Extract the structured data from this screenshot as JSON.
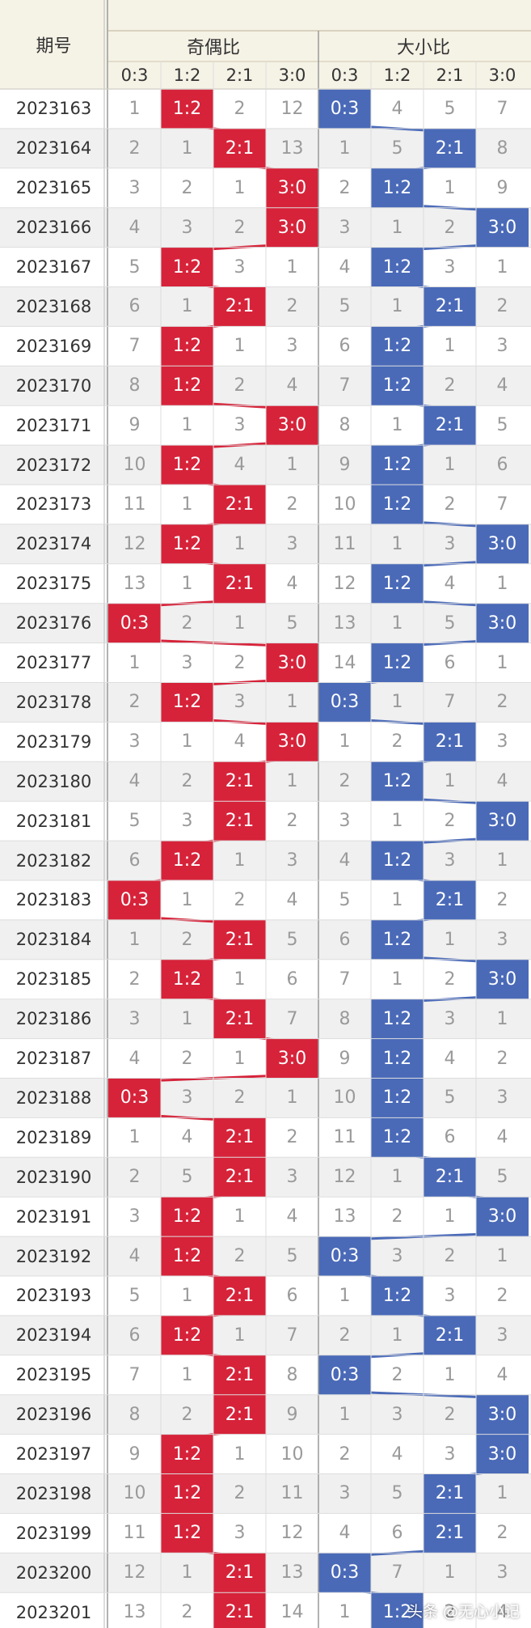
{
  "header": {
    "issue_label": "期号",
    "group_left": "奇偶比",
    "group_right": "大小比",
    "sub_labels": [
      "0:3",
      "1:2",
      "2:1",
      "3:0",
      "0:3",
      "1:2",
      "2:1",
      "3:0"
    ]
  },
  "colors": {
    "header_bg": "#f5f2e6",
    "row_alt": "#f0f0f0",
    "hit_left": "#d6233a",
    "hit_right": "#4a6ab8",
    "grid_line": "#dddddd"
  },
  "rows": [
    {
      "issue": "2023163",
      "left": [
        "1",
        "1:2",
        "2",
        "12"
      ],
      "right": [
        "0:3",
        "4",
        "5",
        "7"
      ],
      "lh": 1,
      "rh": 0
    },
    {
      "issue": "2023164",
      "left": [
        "2",
        "1",
        "2:1",
        "13"
      ],
      "right": [
        "1",
        "5",
        "2:1",
        "8"
      ],
      "lh": 2,
      "rh": 2
    },
    {
      "issue": "2023165",
      "left": [
        "3",
        "2",
        "1",
        "3:0"
      ],
      "right": [
        "2",
        "1:2",
        "1",
        "9"
      ],
      "lh": 3,
      "rh": 1
    },
    {
      "issue": "2023166",
      "left": [
        "4",
        "3",
        "2",
        "3:0"
      ],
      "right": [
        "3",
        "1",
        "2",
        "3:0"
      ],
      "lh": 3,
      "rh": 3
    },
    {
      "issue": "2023167",
      "left": [
        "5",
        "1:2",
        "3",
        "1"
      ],
      "right": [
        "4",
        "1:2",
        "3",
        "1"
      ],
      "lh": 1,
      "rh": 1
    },
    {
      "issue": "2023168",
      "left": [
        "6",
        "1",
        "2:1",
        "2"
      ],
      "right": [
        "5",
        "1",
        "2:1",
        "2"
      ],
      "lh": 2,
      "rh": 2
    },
    {
      "issue": "2023169",
      "left": [
        "7",
        "1:2",
        "1",
        "3"
      ],
      "right": [
        "6",
        "1:2",
        "1",
        "3"
      ],
      "lh": 1,
      "rh": 1
    },
    {
      "issue": "2023170",
      "left": [
        "8",
        "1:2",
        "2",
        "4"
      ],
      "right": [
        "7",
        "1:2",
        "2",
        "4"
      ],
      "lh": 1,
      "rh": 1
    },
    {
      "issue": "2023171",
      "left": [
        "9",
        "1",
        "3",
        "3:0"
      ],
      "right": [
        "8",
        "1",
        "2:1",
        "5"
      ],
      "lh": 3,
      "rh": 2
    },
    {
      "issue": "2023172",
      "left": [
        "10",
        "1:2",
        "4",
        "1"
      ],
      "right": [
        "9",
        "1:2",
        "1",
        "6"
      ],
      "lh": 1,
      "rh": 1
    },
    {
      "issue": "2023173",
      "left": [
        "11",
        "1",
        "2:1",
        "2"
      ],
      "right": [
        "10",
        "1:2",
        "2",
        "7"
      ],
      "lh": 2,
      "rh": 1
    },
    {
      "issue": "2023174",
      "left": [
        "12",
        "1:2",
        "1",
        "3"
      ],
      "right": [
        "11",
        "1",
        "3",
        "3:0"
      ],
      "lh": 1,
      "rh": 3
    },
    {
      "issue": "2023175",
      "left": [
        "13",
        "1",
        "2:1",
        "4"
      ],
      "right": [
        "12",
        "1:2",
        "4",
        "1"
      ],
      "lh": 2,
      "rh": 1
    },
    {
      "issue": "2023176",
      "left": [
        "0:3",
        "2",
        "1",
        "5"
      ],
      "right": [
        "13",
        "1",
        "5",
        "3:0"
      ],
      "lh": 0,
      "rh": 3
    },
    {
      "issue": "2023177",
      "left": [
        "1",
        "3",
        "2",
        "3:0"
      ],
      "right": [
        "14",
        "1:2",
        "6",
        "1"
      ],
      "lh": 3,
      "rh": 1
    },
    {
      "issue": "2023178",
      "left": [
        "2",
        "1:2",
        "3",
        "1"
      ],
      "right": [
        "0:3",
        "1",
        "7",
        "2"
      ],
      "lh": 1,
      "rh": 0
    },
    {
      "issue": "2023179",
      "left": [
        "3",
        "1",
        "4",
        "3:0"
      ],
      "right": [
        "1",
        "2",
        "2:1",
        "3"
      ],
      "lh": 3,
      "rh": 2
    },
    {
      "issue": "2023180",
      "left": [
        "4",
        "2",
        "2:1",
        "1"
      ],
      "right": [
        "2",
        "1:2",
        "1",
        "4"
      ],
      "lh": 2,
      "rh": 1
    },
    {
      "issue": "2023181",
      "left": [
        "5",
        "3",
        "2:1",
        "2"
      ],
      "right": [
        "3",
        "1",
        "2",
        "3:0"
      ],
      "lh": 2,
      "rh": 3
    },
    {
      "issue": "2023182",
      "left": [
        "6",
        "1:2",
        "1",
        "3"
      ],
      "right": [
        "4",
        "1:2",
        "3",
        "1"
      ],
      "lh": 1,
      "rh": 1
    },
    {
      "issue": "2023183",
      "left": [
        "0:3",
        "1",
        "2",
        "4"
      ],
      "right": [
        "5",
        "1",
        "2:1",
        "2"
      ],
      "lh": 0,
      "rh": 2
    },
    {
      "issue": "2023184",
      "left": [
        "1",
        "2",
        "2:1",
        "5"
      ],
      "right": [
        "6",
        "1:2",
        "1",
        "3"
      ],
      "lh": 2,
      "rh": 1
    },
    {
      "issue": "2023185",
      "left": [
        "2",
        "1:2",
        "1",
        "6"
      ],
      "right": [
        "7",
        "1",
        "2",
        "3:0"
      ],
      "lh": 1,
      "rh": 3
    },
    {
      "issue": "2023186",
      "left": [
        "3",
        "1",
        "2:1",
        "7"
      ],
      "right": [
        "8",
        "1:2",
        "3",
        "1"
      ],
      "lh": 2,
      "rh": 1
    },
    {
      "issue": "2023187",
      "left": [
        "4",
        "2",
        "1",
        "3:0"
      ],
      "right": [
        "9",
        "1:2",
        "4",
        "2"
      ],
      "lh": 3,
      "rh": 1
    },
    {
      "issue": "2023188",
      "left": [
        "0:3",
        "3",
        "2",
        "1"
      ],
      "right": [
        "10",
        "1:2",
        "5",
        "3"
      ],
      "lh": 0,
      "rh": 1
    },
    {
      "issue": "2023189",
      "left": [
        "1",
        "4",
        "2:1",
        "2"
      ],
      "right": [
        "11",
        "1:2",
        "6",
        "4"
      ],
      "lh": 2,
      "rh": 1
    },
    {
      "issue": "2023190",
      "left": [
        "2",
        "5",
        "2:1",
        "3"
      ],
      "right": [
        "12",
        "1",
        "2:1",
        "5"
      ],
      "lh": 2,
      "rh": 2
    },
    {
      "issue": "2023191",
      "left": [
        "3",
        "1:2",
        "1",
        "4"
      ],
      "right": [
        "13",
        "2",
        "1",
        "3:0"
      ],
      "lh": 1,
      "rh": 3
    },
    {
      "issue": "2023192",
      "left": [
        "4",
        "1:2",
        "2",
        "5"
      ],
      "right": [
        "0:3",
        "3",
        "2",
        "1"
      ],
      "lh": 1,
      "rh": 0
    },
    {
      "issue": "2023193",
      "left": [
        "5",
        "1",
        "2:1",
        "6"
      ],
      "right": [
        "1",
        "1:2",
        "3",
        "2"
      ],
      "lh": 2,
      "rh": 1
    },
    {
      "issue": "2023194",
      "left": [
        "6",
        "1:2",
        "1",
        "7"
      ],
      "right": [
        "2",
        "1",
        "2:1",
        "3"
      ],
      "lh": 1,
      "rh": 2
    },
    {
      "issue": "2023195",
      "left": [
        "7",
        "1",
        "2:1",
        "8"
      ],
      "right": [
        "0:3",
        "2",
        "1",
        "4"
      ],
      "lh": 2,
      "rh": 0
    },
    {
      "issue": "2023196",
      "left": [
        "8",
        "2",
        "2:1",
        "9"
      ],
      "right": [
        "1",
        "3",
        "2",
        "3:0"
      ],
      "lh": 2,
      "rh": 3
    },
    {
      "issue": "2023197",
      "left": [
        "9",
        "1:2",
        "1",
        "10"
      ],
      "right": [
        "2",
        "4",
        "3",
        "3:0"
      ],
      "lh": 1,
      "rh": 3
    },
    {
      "issue": "2023198",
      "left": [
        "10",
        "1:2",
        "2",
        "11"
      ],
      "right": [
        "3",
        "5",
        "2:1",
        "1"
      ],
      "lh": 1,
      "rh": 2
    },
    {
      "issue": "2023199",
      "left": [
        "11",
        "1:2",
        "3",
        "12"
      ],
      "right": [
        "4",
        "6",
        "2:1",
        "2"
      ],
      "lh": 1,
      "rh": 2
    },
    {
      "issue": "2023200",
      "left": [
        "12",
        "1",
        "2:1",
        "13"
      ],
      "right": [
        "0:3",
        "7",
        "1",
        "3"
      ],
      "lh": 2,
      "rh": 0
    },
    {
      "issue": "2023201",
      "left": [
        "13",
        "2",
        "2:1",
        "14"
      ],
      "right": [
        "1",
        "1:2",
        "2",
        "4"
      ],
      "lh": 2,
      "rh": 1
    }
  ],
  "watermark": "头条 @无心小记"
}
